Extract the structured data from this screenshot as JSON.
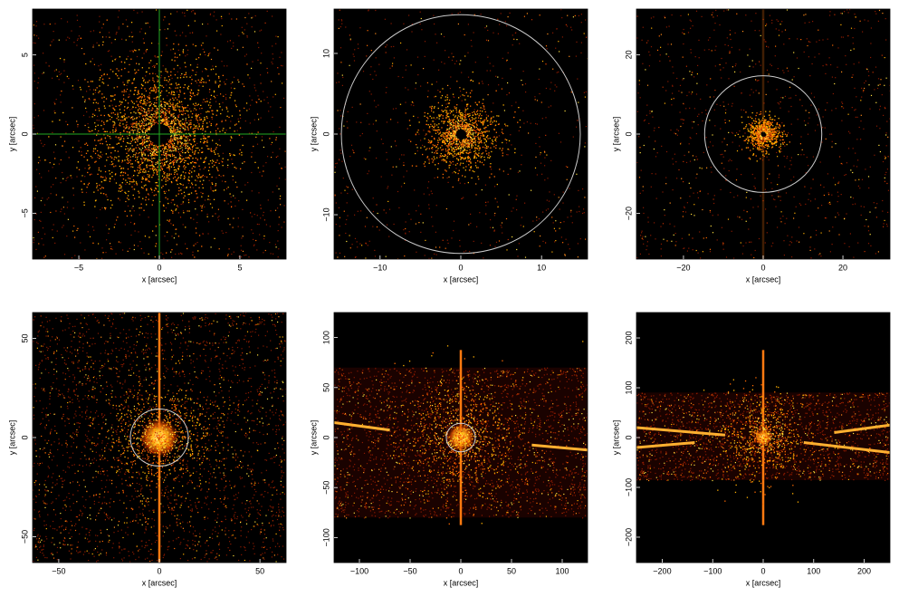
{
  "chart_data": [
    {
      "type": "image",
      "xlabel": "x [arcsec]",
      "ylabel": "y [arcsec]",
      "xlim": [
        -7.87,
        7.87
      ],
      "ylim": [
        -7.9,
        7.9
      ],
      "xticks": [
        {
          "value": -5,
          "label": "−5"
        },
        0,
        5
      ],
      "yticks": [
        {
          "value": -5,
          "label": "−5"
        },
        0,
        5
      ],
      "crosshair": true,
      "crosshair_color": "#22aa22"
    },
    {
      "type": "image",
      "xlabel": "x [arcsec]",
      "ylabel": "y [arcsec]",
      "xlim": [
        -15.7,
        15.7
      ],
      "ylim": [
        -15.5,
        15.5
      ],
      "xticks": [
        {
          "value": -10,
          "label": "−10"
        },
        0,
        10
      ],
      "yticks": [
        {
          "value": -10,
          "label": "−10"
        },
        0,
        10
      ],
      "circle_radius": 14.8,
      "circle_color": "#cccccc"
    },
    {
      "type": "image",
      "xlabel": "x [arcsec]",
      "ylabel": "y [arcsec]",
      "xlim": [
        -31.8,
        31.8
      ],
      "ylim": [
        -31.5,
        31.5
      ],
      "xticks": [
        {
          "value": -20,
          "label": "−20"
        },
        0,
        20
      ],
      "yticks": [
        {
          "value": -20,
          "label": "−20"
        },
        0,
        20
      ],
      "circle_radius": 14.7,
      "circle_color": "#cccccc"
    },
    {
      "type": "image",
      "xlabel": "x [arcsec]",
      "ylabel": "y [arcsec]",
      "xlim": [
        -63,
        63
      ],
      "ylim": [
        -63,
        63
      ],
      "xticks": [
        {
          "value": -50,
          "label": "−50"
        },
        0,
        50
      ],
      "yticks": [
        {
          "value": -50,
          "label": "−50"
        },
        0,
        50
      ],
      "circle_radius": 14.4,
      "circle_color": "#cccccc"
    },
    {
      "type": "image",
      "xlabel": "x [arcsec]",
      "ylabel": "y [arcsec]",
      "xlim": [
        -125,
        125
      ],
      "ylim": [
        -125,
        125
      ],
      "xticks": [
        {
          "value": -100,
          "label": "−100"
        },
        {
          "value": -50,
          "label": "−50"
        },
        0,
        50,
        100
      ],
      "yticks": [
        {
          "value": -100,
          "label": "−100"
        },
        {
          "value": -50,
          "label": "−50"
        },
        0,
        50,
        100
      ],
      "circle_radius": 14.3,
      "circle_color": "#cccccc"
    },
    {
      "type": "image",
      "xlabel": "x [arcsec]",
      "ylabel": "y [arcsec]",
      "xlim": [
        -251,
        251
      ],
      "ylim": [
        -251,
        251
      ],
      "xticks": [
        {
          "value": -200,
          "label": "−200"
        },
        {
          "value": -100,
          "label": "−100"
        },
        0,
        100,
        200
      ],
      "yticks": [
        {
          "value": -200,
          "label": "−200"
        },
        {
          "value": -100,
          "label": "−100"
        },
        0,
        100,
        200
      ]
    }
  ]
}
